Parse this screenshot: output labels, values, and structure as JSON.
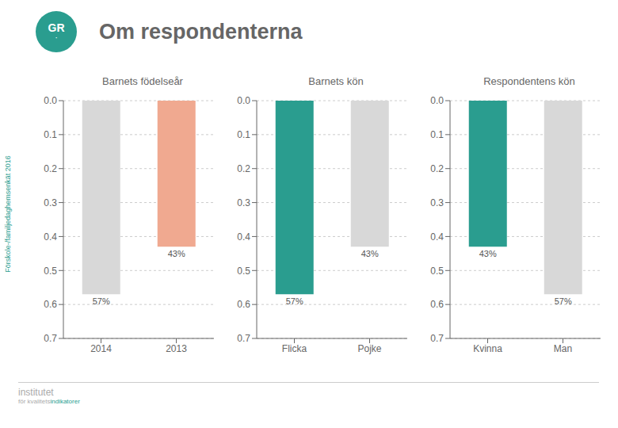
{
  "title": "Om respondenterna",
  "annotations": [
    "Förskole-/familjedaghemsenkät 2016",
    "GR",
    "·",
    "institutet",
    "för kvalitets",
    "indikatorer"
  ],
  "chart_data": [
    {
      "type": "bar",
      "title": "Barnets födelseår",
      "categories": [
        "2014",
        "2013"
      ],
      "values": [
        0.57,
        0.43
      ],
      "value_labels": [
        "57%",
        "43%"
      ],
      "colors": [
        "#d8d8d8",
        "#f0a990"
      ],
      "ylim": [
        0.7,
        0
      ],
      "yticks": [
        {
          "value": 0,
          "label": "0.0"
        },
        0.1,
        0.2,
        0.3,
        0.4,
        0.5,
        0.6,
        0.7
      ],
      "grid": true,
      "data_labels": true
    },
    {
      "type": "bar",
      "title": "Barnets kön",
      "categories": [
        "Flicka",
        "Pojke"
      ],
      "values": [
        0.57,
        0.43
      ],
      "value_labels": [
        "57%",
        "43%"
      ],
      "colors": [
        "#2a9d8f",
        "#d8d8d8"
      ],
      "ylim": [
        0.7,
        0
      ],
      "yticks": [
        {
          "value": 0,
          "label": "0.0"
        },
        0.1,
        0.2,
        0.3,
        0.4,
        0.5,
        0.6,
        0.7
      ],
      "grid": true,
      "data_labels": true
    },
    {
      "type": "bar",
      "title": "Respondentens kön",
      "categories": [
        "Kvinna",
        "Man"
      ],
      "values": [
        0.43,
        0.57
      ],
      "value_labels": [
        "43%",
        "57%"
      ],
      "colors": [
        "#2a9d8f",
        "#d8d8d8"
      ],
      "ylim": [
        0.7,
        0
      ],
      "yticks": [
        {
          "value": 0,
          "label": "0.0"
        },
        0.1,
        0.2,
        0.3,
        0.4,
        0.5,
        0.6,
        0.7
      ],
      "grid": true,
      "data_labels": true
    }
  ]
}
